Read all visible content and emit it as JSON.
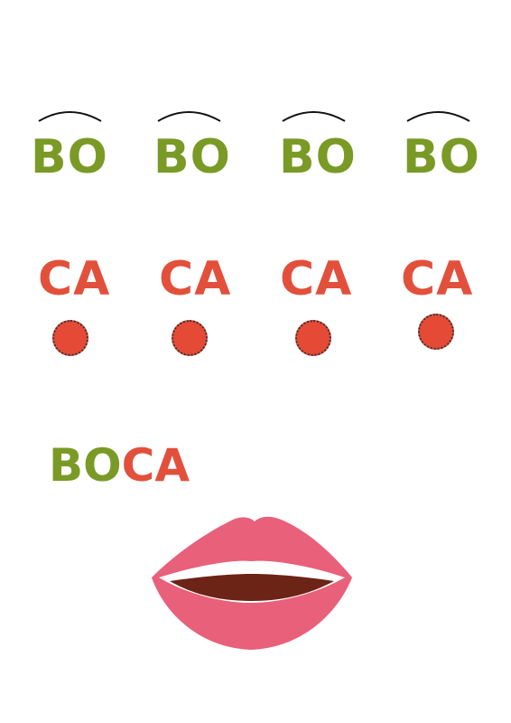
{
  "row1": [
    "BO",
    "BO",
    "BO",
    "BO"
  ],
  "row2": [
    "CA",
    "CA",
    "CA",
    "CA"
  ],
  "word": {
    "part1": "BO",
    "part2": "CA"
  },
  "colors": {
    "green": "#7a9a26",
    "red": "#e2503c",
    "lip": "#e8607a",
    "mouth": "#6b2416"
  },
  "icons": [
    "eyebrow-arc-icon",
    "cheek-dot-icon",
    "lips-icon"
  ]
}
